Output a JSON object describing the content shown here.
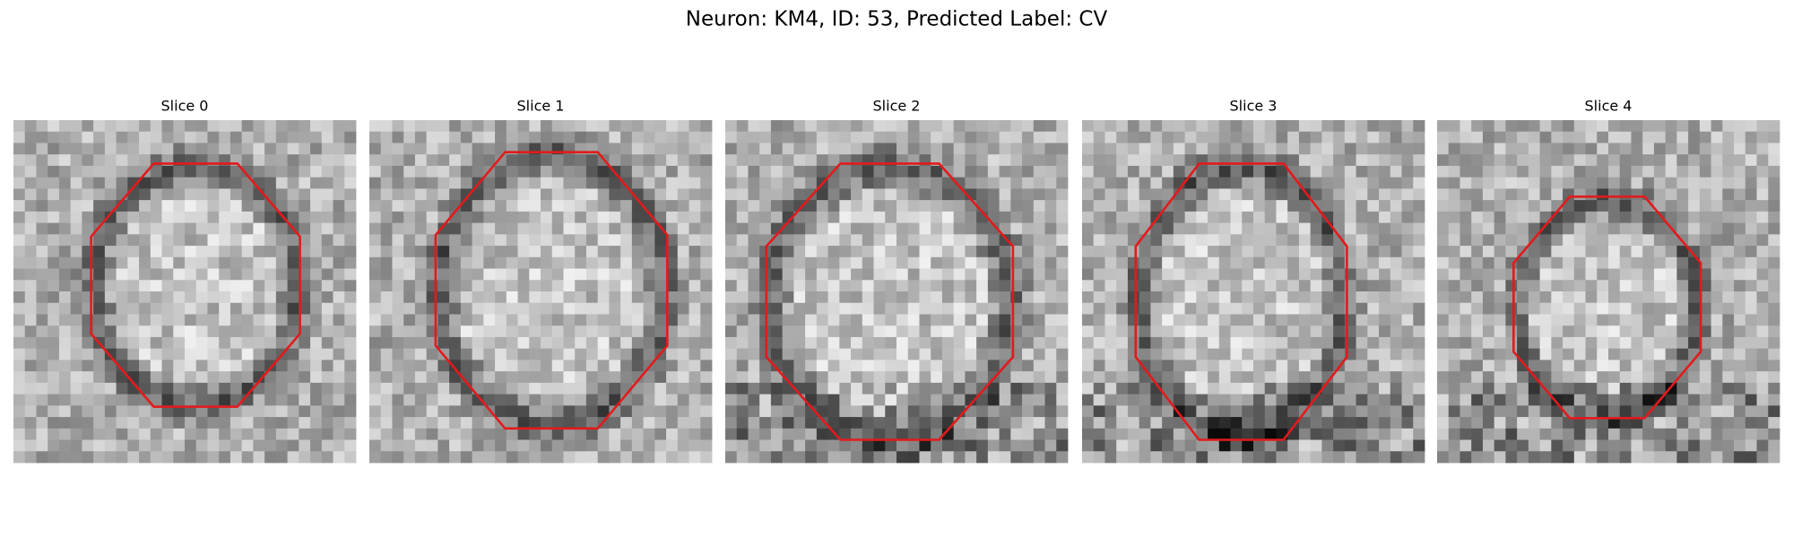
{
  "title": "Neuron: KM4, ID: 53, Predicted Label: CV",
  "panels": [
    {
      "title": "Slice 0"
    },
    {
      "title": "Slice 1"
    },
    {
      "title": "Slice 2"
    },
    {
      "title": "Slice 3"
    },
    {
      "title": "Slice 4"
    }
  ]
}
